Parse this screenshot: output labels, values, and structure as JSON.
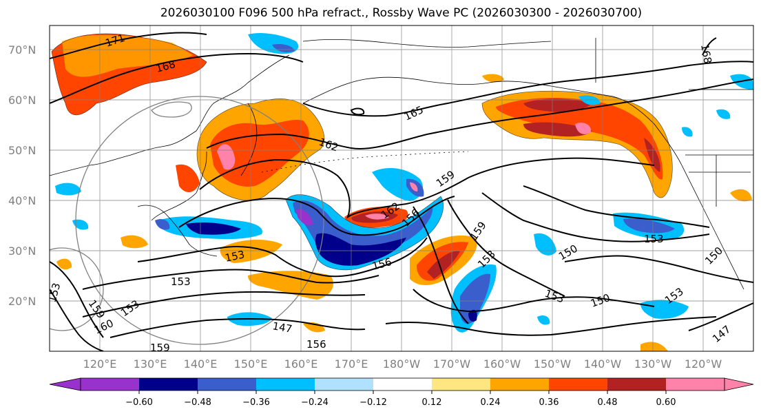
{
  "title": "2026030100 F096 500 hPa refract., Rossby Wave PC (2026030300 - 2026030700)",
  "lat_labels": [
    "70°N",
    "60°N",
    "50°N",
    "40°N",
    "30°N",
    "20°N"
  ],
  "lon_labels": [
    "120°E",
    "130°E",
    "140°E",
    "150°E",
    "160°E",
    "170°E",
    "180°W",
    "170°W",
    "160°W",
    "150°W",
    "140°W",
    "130°W",
    "120°W"
  ],
  "contour_labels": [
    "171",
    "168",
    "165",
    "162",
    "159",
    "162",
    "156",
    "159",
    "153",
    "156",
    "153",
    "153",
    "150",
    "153",
    "150",
    "153",
    "150",
    "147",
    "156",
    "159",
    "160",
    "153",
    "159",
    "153",
    "147",
    "153",
    "168"
  ],
  "colorbar": {
    "ticks": [
      "−0.60",
      "−0.48",
      "−0.36",
      "−0.24",
      "−0.12",
      "0.12",
      "0.24",
      "0.36",
      "0.48",
      "0.60"
    ],
    "colors": [
      "#9932cc",
      "#00008b",
      "#3a5fcd",
      "#00bfff",
      "#b0e2ff",
      "#ffffff",
      "#ffe680",
      "#ffa500",
      "#ff4500",
      "#b22222",
      "#ff82ab"
    ]
  }
}
